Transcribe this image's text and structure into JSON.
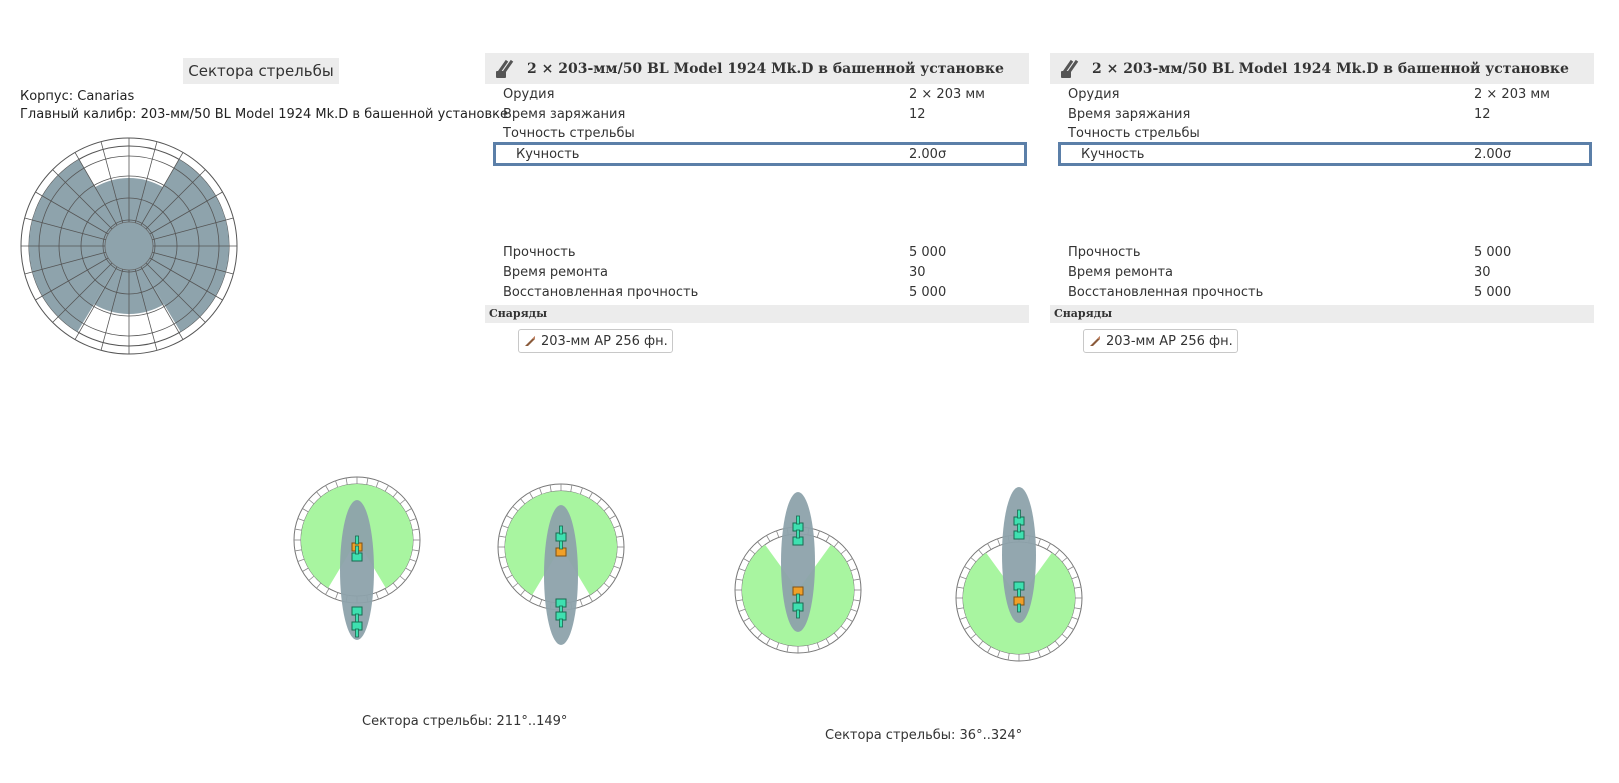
{
  "sectors_title": "Сектора стрельбы",
  "hull_line": "Корпус: Canarias",
  "main_caliber_line": "Главный калибр: 203-мм/50 BL Model 1924 Mk.D в башенной установке",
  "panels": [
    {
      "title": "2 × 203-мм/50 BL Model 1924 Mk.D в башенной установке",
      "icon": "turret-gun-icon",
      "guns_label": "Орудия",
      "guns_value": "2 × 203 мм",
      "reload_label": "Время заряжания",
      "reload_value": "12",
      "accuracy_label": "Точность стрельбы",
      "dispersion_label": "Кучность",
      "dispersion_value": "2.00σ",
      "hp_label": "Прочность",
      "hp_value": "5 000",
      "repair_label": "Время ремонта",
      "repair_value": "30",
      "restored_label": "Восстановленная прочность",
      "restored_value": "5 000",
      "shells_label": "Снаряды",
      "shell_name": "203-мм АР 256 фн."
    },
    {
      "title": "2 × 203-мм/50 BL Model 1924 Mk.D в башенной установке",
      "icon": "turret-gun-icon",
      "guns_label": "Орудия",
      "guns_value": "2 × 203 мм",
      "reload_label": "Время заряжания",
      "reload_value": "12",
      "accuracy_label": "Точность стрельбы",
      "dispersion_label": "Кучность",
      "dispersion_value": "2.00σ",
      "hp_label": "Прочность",
      "hp_value": "5 000",
      "repair_label": "Время ремонта",
      "repair_value": "30",
      "restored_label": "Восстановленная прочность",
      "restored_value": "5 000",
      "shells_label": "Снаряды",
      "shell_name": "203-мм АР 256 фн."
    }
  ],
  "fore_caption": "Сектора стрельбы: 211°..149°",
  "aft_caption": "Сектора стрельбы: 36°..324°",
  "colors": {
    "sector_fill": "#8ea3ac",
    "arc_green": "#a8f5a0",
    "hull_ellipse": "#8da2ab",
    "panel_header_bg": "#ececec",
    "highlight_border": "#5b7fa8",
    "turret_cyan": "#3ee0b0",
    "turret_orange": "#f0a028"
  }
}
